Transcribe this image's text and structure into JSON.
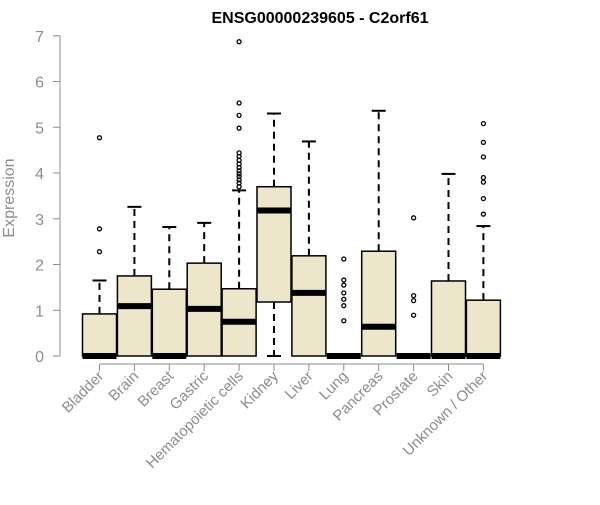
{
  "chart_data": {
    "type": "box",
    "title": "ENSG00000239605 - C2orf61",
    "xlabel": "",
    "ylabel": "Expression",
    "ylim": [
      0,
      7
    ],
    "yticks": [
      "0",
      "1",
      "2",
      "3",
      "4",
      "5",
      "6",
      "7"
    ],
    "grid": false,
    "legend": "none",
    "box_fill": "#ede6cb",
    "box_stroke": "#000000",
    "axis_color": "#8c8c8c",
    "categories": [
      "Bladder",
      "Brain",
      "Breast",
      "Gastric",
      "Hematopoietic cells",
      "Kidney",
      "Liver",
      "Lung",
      "Pancreas",
      "Prostate",
      "Skin",
      "Unknown / Other"
    ],
    "boxes": [
      {
        "category": "Bladder",
        "whisker_low": 0,
        "q1": 0,
        "median": 0,
        "q3": 0.92,
        "whisker_high": 1.65,
        "outliers": [
          2.28,
          2.78,
          4.77
        ]
      },
      {
        "category": "Brain",
        "whisker_low": 0,
        "q1": 0,
        "median": 1.09,
        "q3": 1.75,
        "whisker_high": 3.26,
        "outliers": []
      },
      {
        "category": "Breast",
        "whisker_low": 0,
        "q1": 0,
        "median": 0,
        "q3": 1.46,
        "whisker_high": 2.82,
        "outliers": []
      },
      {
        "category": "Gastric",
        "whisker_low": 0,
        "q1": 0,
        "median": 1.03,
        "q3": 2.03,
        "whisker_high": 2.91,
        "outliers": []
      },
      {
        "category": "Hematopoietic cells",
        "whisker_low": 0,
        "q1": 0,
        "median": 0.75,
        "q3": 1.47,
        "whisker_high": 3.62,
        "outliers": [
          3.7,
          3.78,
          3.85,
          3.92,
          3.98,
          4.05,
          4.12,
          4.2,
          4.28,
          4.36,
          4.44,
          4.98,
          5.26,
          5.53,
          6.87
        ]
      },
      {
        "category": "Kidney",
        "whisker_low": 0,
        "q1": 1.18,
        "median": 3.18,
        "q3": 3.7,
        "whisker_high": 5.3,
        "outliers": []
      },
      {
        "category": "Liver",
        "whisker_low": 0,
        "q1": 0,
        "median": 1.38,
        "q3": 2.19,
        "whisker_high": 4.69,
        "outliers": []
      },
      {
        "category": "Lung",
        "whisker_low": 0,
        "q1": 0,
        "median": 0,
        "q3": 0,
        "whisker_high": 0,
        "outliers": [
          0.77,
          1.1,
          1.24,
          1.38,
          1.55,
          1.66,
          2.12
        ]
      },
      {
        "category": "Pancreas",
        "whisker_low": 0,
        "q1": 0,
        "median": 0.64,
        "q3": 2.29,
        "whisker_high": 5.36,
        "outliers": []
      },
      {
        "category": "Prostate",
        "whisker_low": 0,
        "q1": 0,
        "median": 0,
        "q3": 0,
        "whisker_high": 0,
        "outliers": [
          0.89,
          1.21,
          1.32,
          3.02
        ]
      },
      {
        "category": "Skin",
        "whisker_low": 0,
        "q1": 0,
        "median": 0,
        "q3": 1.64,
        "whisker_high": 3.98,
        "outliers": []
      },
      {
        "category": "Unknown / Other",
        "whisker_low": 0,
        "q1": 0,
        "median": 0,
        "q3": 1.22,
        "whisker_high": 2.84,
        "outliers": [
          3.1,
          3.44,
          3.8,
          3.9,
          4.35,
          4.67,
          5.08
        ]
      }
    ]
  }
}
